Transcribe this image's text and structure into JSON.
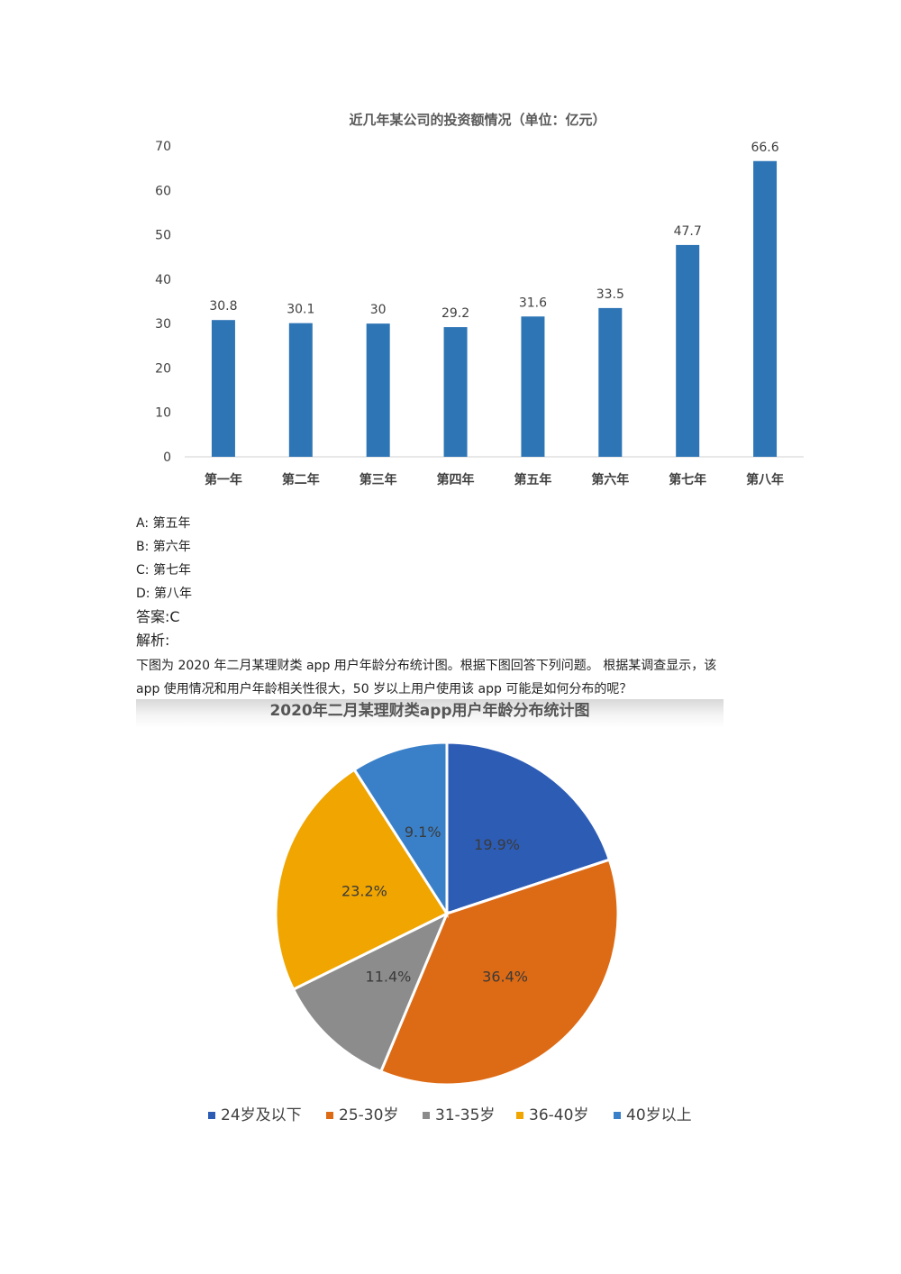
{
  "chart_data": [
    {
      "type": "bar",
      "title": "近几年某公司的投资额情况（单位：亿元）",
      "categories": [
        "第一年",
        "第二年",
        "第三年",
        "第四年",
        "第五年",
        "第六年",
        "第七年",
        "第八年"
      ],
      "values": [
        30.8,
        30.1,
        30,
        29.2,
        31.6,
        33.5,
        47.7,
        66.6
      ],
      "ylim": [
        0,
        70
      ],
      "yticks": [
        0,
        10,
        20,
        30,
        40,
        50,
        60,
        70
      ],
      "grid": false,
      "bar_color": "#2e75b6"
    },
    {
      "type": "pie",
      "title": "2020年二月某理财类app用户年龄分布统计图",
      "slices": [
        {
          "label": "24岁及以下",
          "value": 19.9,
          "display": "19.9%",
          "color": "#2d5cb5"
        },
        {
          "label": "25-30岁",
          "value": 36.4,
          "display": "36.4%",
          "color": "#dd6a14"
        },
        {
          "label": "31-35岁",
          "value": 11.4,
          "display": "11.4%",
          "color": "#8c8c8c"
        },
        {
          "label": "36-40岁",
          "value": 23.2,
          "display": "23.2%",
          "color": "#f0a500"
        },
        {
          "label": "40岁以上",
          "value": 9.1,
          "display": "9.1%",
          "color": "#3a80c9"
        }
      ],
      "legend_position": "bottom"
    }
  ],
  "question": {
    "options": [
      "A:  第五年",
      "B:  第六年",
      "C:  第七年",
      "D:  第八年"
    ],
    "answer": "答案:C",
    "analysis_label": "解析:",
    "paragraph_lines": [
      "下图为 2020 年二月某理财类 app 用户年龄分布统计图。根据下图回答下列问题。  根据某调查显示，该",
      "app 使用情况和用户年龄相关性很大，50 岁以上用户使用该 app 可能是如何分布的呢？"
    ]
  }
}
